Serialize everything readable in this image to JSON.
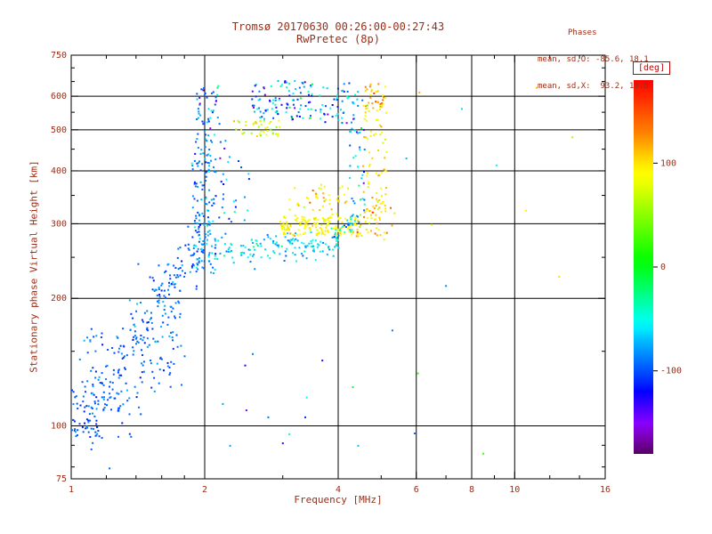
{
  "colors": {
    "text": "#9b2d16",
    "axis": "#000000",
    "background": "#ffffff",
    "colorbar_label": "#cc0000"
  },
  "stats": {
    "header": "Phases",
    "line_o": "mean, sd,O: -85.6, 18.1",
    "line_x": "mean, sd,X:  93.2, 19.8"
  },
  "colorbar": {
    "label": "[deg]",
    "ticks": [
      100,
      0,
      -100
    ],
    "vmin": -180,
    "vmax": 180,
    "colormap": "rainbow",
    "position": "right"
  },
  "chart_data": {
    "type": "scatter",
    "title": "Tromsø 20170630 00:26:00-00:27:43",
    "subtitle": "RwPretec (8p)",
    "xlabel": "Frequency [MHz]",
    "ylabel": "Stationary phase Virtual Height [km]",
    "xscale": "log",
    "yscale": "log",
    "xlim": [
      1,
      16
    ],
    "ylim": [
      75,
      750
    ],
    "xticks": [
      1,
      2,
      4,
      6,
      8,
      10,
      16
    ],
    "yticks": [
      75,
      100,
      200,
      300,
      400,
      500,
      600,
      750
    ],
    "minor_xticks": [
      1.2,
      1.4,
      1.6,
      1.8,
      3,
      5,
      7,
      9,
      12,
      14
    ],
    "minor_yticks": [
      80,
      90,
      150,
      250,
      350,
      450,
      550,
      650,
      700
    ],
    "grid_x": [
      2,
      4,
      6,
      8,
      10
    ],
    "grid_y": [
      100,
      200,
      300,
      400,
      500,
      600
    ],
    "grid": true,
    "phase_units": "deg",
    "marker_size": 2,
    "clusters": [
      {
        "mode": "box",
        "f": [
          1.0,
          1.16
        ],
        "h": [
          94,
          122
        ],
        "n": 55,
        "phase": [
          -95,
          12
        ]
      },
      {
        "mode": "box",
        "f": [
          1.04,
          1.34
        ],
        "h": [
          108,
          170
        ],
        "n": 65,
        "phase": [
          -92,
          12
        ]
      },
      {
        "mode": "line",
        "from": [
          1.1,
          105
        ],
        "to": [
          2.0,
          285
        ],
        "jit": 0.1,
        "n": 150,
        "phase": [
          -95,
          10
        ]
      },
      {
        "mode": "line",
        "from": [
          1.25,
          100
        ],
        "to": [
          1.8,
          155
        ],
        "jit": 0.08,
        "n": 45,
        "phase": [
          -96,
          10
        ]
      },
      {
        "mode": "box",
        "f": [
          1.35,
          1.78
        ],
        "h": [
          150,
          245
        ],
        "n": 60,
        "phase": [
          -90,
          14
        ]
      },
      {
        "mode": "box",
        "f": [
          1.88,
          2.12
        ],
        "h": [
          228,
          335
        ],
        "n": 85,
        "phase": [
          -75,
          20
        ]
      },
      {
        "mode": "box",
        "f": [
          1.87,
          2.13
        ],
        "h": [
          335,
          505
        ],
        "n": 70,
        "phase": [
          -88,
          18
        ]
      },
      {
        "mode": "box",
        "f": [
          1.9,
          2.16
        ],
        "h": [
          505,
          635
        ],
        "n": 40,
        "phase": [
          -95,
          25
        ]
      },
      {
        "mode": "line",
        "from": [
          2.15,
          258
        ],
        "to": [
          3.85,
          268
        ],
        "jit": 0.035,
        "n": 130,
        "phase": [
          -62,
          18
        ]
      },
      {
        "mode": "line",
        "from": [
          3.85,
          272
        ],
        "to": [
          4.35,
          302
        ],
        "jit": 0.035,
        "n": 40,
        "phase": [
          -58,
          20
        ]
      },
      {
        "mode": "box",
        "f": [
          2.95,
          4.45
        ],
        "h": [
          282,
          312
        ],
        "n": 150,
        "phase": [
          92,
          10
        ]
      },
      {
        "mode": "box",
        "f": [
          3.0,
          4.3
        ],
        "h": [
          312,
          372
        ],
        "n": 32,
        "phase": [
          96,
          14
        ]
      },
      {
        "mode": "box",
        "f": [
          3.4,
          4.05
        ],
        "h": [
          320,
          368
        ],
        "n": 12,
        "phase": [
          122,
          12
        ]
      },
      {
        "mode": "box",
        "f": [
          2.55,
          3.45
        ],
        "h": [
          528,
          652
        ],
        "n": 90,
        "phase": [
          -85,
          35
        ]
      },
      {
        "mode": "box",
        "f": [
          2.3,
          2.95
        ],
        "h": [
          480,
          527
        ],
        "n": 40,
        "phase": [
          80,
          20
        ]
      },
      {
        "mode": "box",
        "f": [
          3.45,
          4.35
        ],
        "h": [
          518,
          645
        ],
        "n": 55,
        "phase": [
          -72,
          40
        ]
      },
      {
        "mode": "box",
        "f": [
          2.15,
          2.52
        ],
        "h": [
          300,
          480
        ],
        "n": 28,
        "phase": [
          -80,
          25
        ]
      },
      {
        "mode": "box",
        "f": [
          4.55,
          5.15
        ],
        "h": [
          300,
          645
        ],
        "n": 90,
        "phase": [
          95,
          14
        ]
      },
      {
        "mode": "box",
        "f": [
          4.6,
          5.1
        ],
        "h": [
          560,
          650
        ],
        "n": 18,
        "phase": [
          122,
          16
        ]
      },
      {
        "mode": "box",
        "f": [
          4.2,
          4.6
        ],
        "h": [
          300,
          620
        ],
        "n": 45,
        "phase": [
          -75,
          25
        ]
      },
      {
        "mode": "box",
        "f": [
          4.4,
          5.4
        ],
        "h": [
          275,
          332
        ],
        "n": 38,
        "phase": [
          102,
          22
        ]
      },
      {
        "mode": "box",
        "f": [
          1.95,
          4.6
        ],
        "h": [
          78,
          150
        ],
        "n": 13,
        "phase": [
          -85,
          45
        ]
      }
    ],
    "outliers": [
      [
        6.1,
        612,
        115
      ],
      [
        6.05,
        133,
        20
      ],
      [
        7.0,
        214,
        -85
      ],
      [
        8.5,
        86,
        25
      ],
      [
        11.2,
        628,
        112
      ],
      [
        10.6,
        322,
        95
      ],
      [
        5.7,
        428,
        -72
      ],
      [
        6.5,
        298,
        88
      ],
      [
        5.95,
        96,
        -92
      ],
      [
        9.1,
        412,
        -58
      ],
      [
        12.6,
        225,
        103
      ],
      [
        5.3,
        168,
        -88
      ],
      [
        7.6,
        560,
        -65
      ],
      [
        13.5,
        480,
        60
      ]
    ]
  }
}
